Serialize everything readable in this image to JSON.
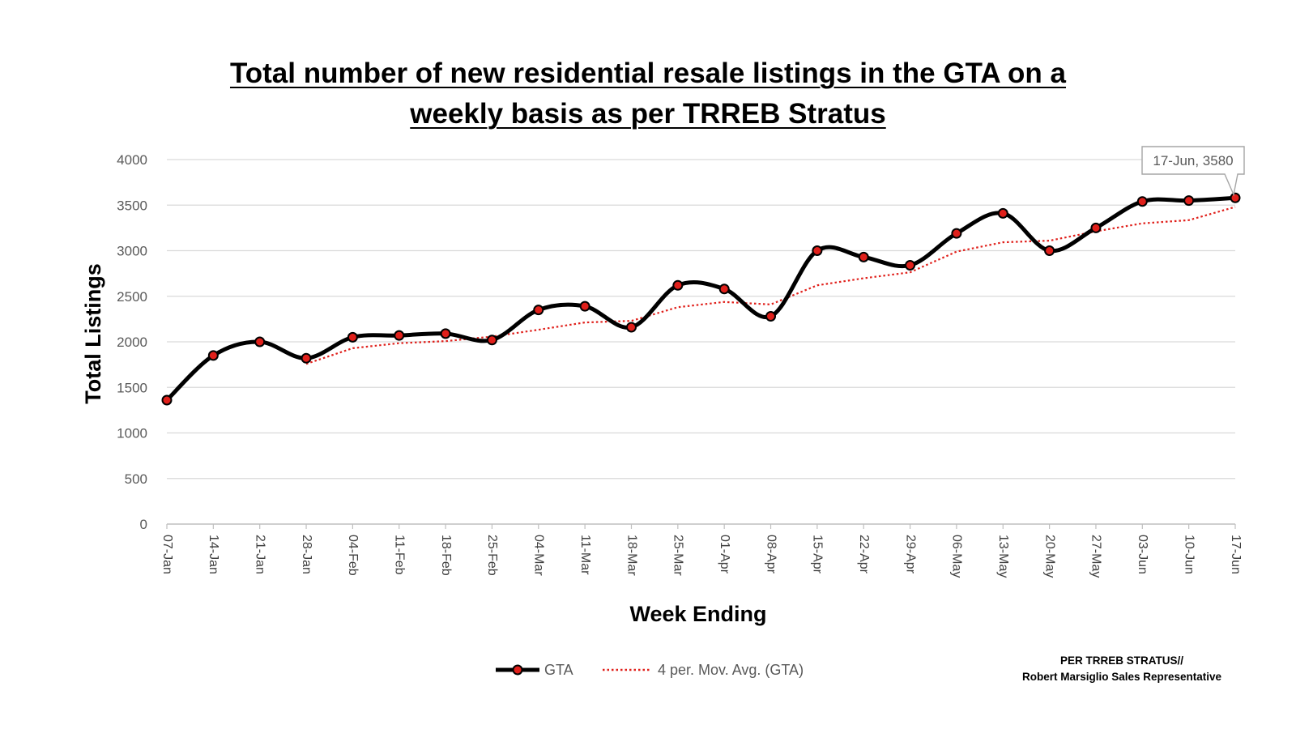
{
  "chart_data": {
    "type": "line",
    "title_lines": [
      "Total number of new residential resale listings in the GTA on a",
      "weekly basis as per TRREB Stratus"
    ],
    "xlabel": "Week Ending",
    "ylabel": "Total Listings",
    "ylim": [
      0,
      4000
    ],
    "yticks": [
      0,
      500,
      1000,
      1500,
      2000,
      2500,
      3000,
      3500,
      4000
    ],
    "grid": true,
    "legend_position": "bottom-center",
    "categories": [
      "07-Jan",
      "14-Jan",
      "21-Jan",
      "28-Jan",
      "04-Feb",
      "11-Feb",
      "18-Feb",
      "25-Feb",
      "04-Mar",
      "11-Mar",
      "18-Mar",
      "25-Mar",
      "01-Apr",
      "08-Apr",
      "15-Apr",
      "22-Apr",
      "29-Apr",
      "06-May",
      "13-May",
      "20-May",
      "27-May",
      "03-Jun",
      "10-Jun",
      "17-Jun"
    ],
    "series": [
      {
        "name": "GTA",
        "style": "solid-markers",
        "color": "#000000",
        "marker_color": "#e0201b",
        "values": [
          1360,
          1850,
          2000,
          1820,
          2050,
          2070,
          2090,
          2020,
          2350,
          2390,
          2160,
          2620,
          2580,
          2280,
          3000,
          2930,
          2840,
          3190,
          3410,
          3000,
          3250,
          3540,
          3550,
          3580
        ]
      },
      {
        "name": "4 per. Mov. Avg. (GTA)",
        "style": "dotted",
        "color": "#e0201b",
        "values": [
          null,
          null,
          null,
          1757.5,
          1930,
          1985,
          2007.5,
          2057.5,
          2132.5,
          2212.5,
          2230,
          2380,
          2437.5,
          2410,
          2620,
          2697.5,
          2762.5,
          2990,
          3092.5,
          3110,
          3212.5,
          3300,
          3335,
          3480
        ]
      }
    ],
    "annotation": {
      "category": "17-Jun",
      "text": "17-Jun, 3580"
    },
    "credit_lines": [
      "PER TRREB  STRATUS//",
      "Robert Marsiglio Sales Representative"
    ]
  }
}
